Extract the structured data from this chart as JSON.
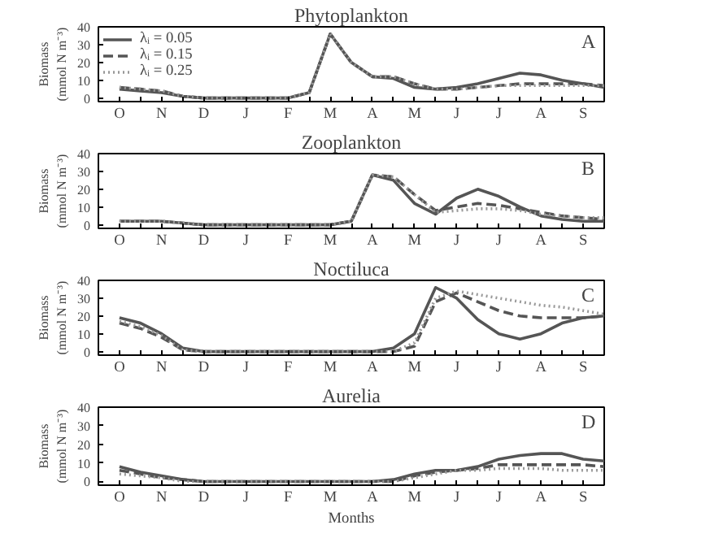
{
  "chart_data": [
    {
      "type": "line",
      "title": "Phytoplankton",
      "ylabel": "Biomass (mmol N m⁻³)",
      "annotations": [
        "A"
      ],
      "legend": "top left",
      "grid": false,
      "marker": "none",
      "categories": [
        "O",
        null,
        "N",
        null,
        "D",
        null,
        "J",
        null,
        "F",
        null,
        "M",
        null,
        "A",
        null,
        "M",
        null,
        "J",
        null,
        "J",
        null,
        "A",
        null,
        "S",
        null
      ],
      "ylim": [
        -2,
        40
      ],
      "yticks": [
        0,
        10,
        20,
        30,
        40
      ],
      "series": [
        {
          "name": "λᵢ = 0.05",
          "color": "#555555",
          "line_style": "solid",
          "values": [
            5,
            4,
            3,
            1,
            0,
            0,
            0,
            0,
            0,
            3,
            36,
            20,
            12,
            11,
            6,
            5,
            6,
            8,
            11,
            14,
            13,
            10,
            8,
            6
          ]
        },
        {
          "name": "λᵢ = 0.15",
          "color": "#555555",
          "line_style": "dashed",
          "values": [
            6,
            5,
            4,
            1,
            0,
            0,
            0,
            0,
            0,
            3,
            36,
            20,
            12,
            12,
            8,
            5,
            5,
            6,
            7,
            8,
            8,
            8,
            8,
            7
          ]
        },
        {
          "name": "λᵢ = 0.25",
          "color": "#999999",
          "line_style": "dotted",
          "values": [
            6,
            5,
            4,
            1,
            0,
            0,
            0,
            0,
            0,
            3,
            36,
            20,
            12,
            12,
            8,
            5,
            5,
            6,
            7,
            7,
            7,
            7,
            7,
            7
          ]
        }
      ]
    },
    {
      "type": "line",
      "title": "Zooplankton",
      "ylabel": "Biomass (mmol N m⁻³)",
      "annotations": [
        "B"
      ],
      "grid": false,
      "marker": "none",
      "categories": [
        "O",
        null,
        "N",
        null,
        "D",
        null,
        "J",
        null,
        "F",
        null,
        "M",
        null,
        "A",
        null,
        "M",
        null,
        "J",
        null,
        "J",
        null,
        "A",
        null,
        "S",
        null
      ],
      "ylim": [
        -2,
        40
      ],
      "yticks": [
        0,
        10,
        20,
        30,
        40
      ],
      "series": [
        {
          "color": "#555555",
          "line_style": "solid",
          "values": [
            2,
            2,
            2,
            1,
            0,
            0,
            0,
            0,
            0,
            0,
            0,
            2,
            28,
            25,
            12,
            6,
            15,
            20,
            16,
            10,
            5,
            3,
            2,
            2
          ]
        },
        {
          "color": "#555555",
          "line_style": "dashed",
          "values": [
            2,
            2,
            2,
            1,
            0,
            0,
            0,
            0,
            0,
            0,
            0,
            2,
            28,
            27,
            17,
            8,
            10,
            12,
            11,
            9,
            7,
            5,
            4,
            3
          ]
        },
        {
          "color": "#999999",
          "line_style": "dotted",
          "values": [
            2,
            2,
            2,
            1,
            0,
            0,
            0,
            0,
            0,
            0,
            0,
            2,
            28,
            27,
            17,
            7,
            8,
            9,
            9,
            8,
            6,
            5,
            4,
            4
          ]
        }
      ]
    },
    {
      "type": "line",
      "title": "Noctiluca",
      "ylabel": "Biomass (mmol N m⁻³)",
      "annotations": [
        "C"
      ],
      "grid": false,
      "marker": "none",
      "categories": [
        "O",
        null,
        "N",
        null,
        "D",
        null,
        "J",
        null,
        "F",
        null,
        "M",
        null,
        "A",
        null,
        "M",
        null,
        "J",
        null,
        "J",
        null,
        "A",
        null,
        "S",
        null
      ],
      "ylim": [
        -2,
        40
      ],
      "yticks": [
        0,
        10,
        20,
        30,
        40
      ],
      "series": [
        {
          "color": "#555555",
          "line_style": "solid",
          "values": [
            19,
            16,
            10,
            2,
            0,
            0,
            0,
            0,
            0,
            0,
            0,
            0,
            0,
            2,
            10,
            36,
            30,
            18,
            10,
            7,
            10,
            16,
            19,
            20
          ]
        },
        {
          "color": "#555555",
          "line_style": "dashed",
          "values": [
            16,
            13,
            8,
            1,
            0,
            0,
            0,
            0,
            0,
            0,
            0,
            0,
            0,
            0,
            3,
            28,
            33,
            28,
            23,
            20,
            19,
            19,
            19,
            20
          ]
        },
        {
          "color": "#999999",
          "line_style": "dotted",
          "values": [
            17,
            14,
            9,
            1,
            0,
            0,
            0,
            0,
            0,
            0,
            0,
            0,
            0,
            0,
            5,
            30,
            34,
            32,
            30,
            28,
            26,
            25,
            23,
            21
          ]
        }
      ]
    },
    {
      "type": "line",
      "title": "Aurelia",
      "xlabel": "Months",
      "ylabel": "Biomass (mmol N m⁻³)",
      "annotations": [
        "D"
      ],
      "grid": false,
      "marker": "none",
      "categories": [
        "O",
        null,
        "N",
        null,
        "D",
        null,
        "J",
        null,
        "F",
        null,
        "M",
        null,
        "A",
        null,
        "M",
        null,
        "J",
        null,
        "J",
        null,
        "A",
        null,
        "S",
        null
      ],
      "ylim": [
        -2,
        40
      ],
      "yticks": [
        0,
        10,
        20,
        30,
        40
      ],
      "series": [
        {
          "color": "#555555",
          "line_style": "solid",
          "values": [
            8,
            5,
            3,
            1,
            0,
            0,
            0,
            0,
            0,
            0,
            0,
            0,
            0,
            1,
            4,
            6,
            6,
            8,
            12,
            14,
            15,
            15,
            12,
            11
          ]
        },
        {
          "color": "#555555",
          "line_style": "dashed",
          "values": [
            6,
            4,
            2,
            1,
            0,
            0,
            0,
            0,
            0,
            0,
            0,
            0,
            0,
            0,
            3,
            5,
            6,
            7,
            9,
            9,
            9,
            9,
            9,
            8
          ]
        },
        {
          "color": "#999999",
          "line_style": "dotted",
          "values": [
            4,
            3,
            2,
            0,
            0,
            0,
            0,
            0,
            0,
            0,
            0,
            0,
            0,
            0,
            2,
            4,
            6,
            6,
            7,
            7,
            7,
            6,
            6,
            6
          ]
        }
      ]
    }
  ]
}
